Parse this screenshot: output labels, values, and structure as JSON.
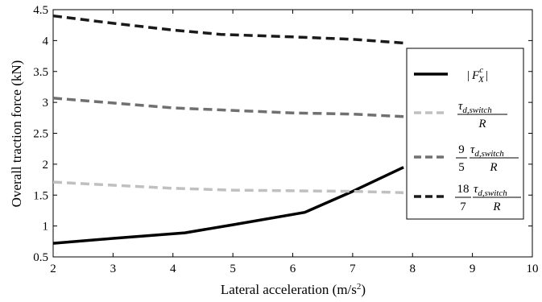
{
  "chart_data": {
    "type": "line",
    "title": "",
    "xlabel": "Lateral acceleration (m/s",
    "xlabel_sup": "2",
    "xlabel_close": ")",
    "ylabel": "Overall traction force (kN)",
    "xlim": [
      2,
      10
    ],
    "ylim": [
      0.5,
      4.5
    ],
    "xticks": [
      2,
      3,
      4,
      5,
      6,
      7,
      8,
      9,
      10
    ],
    "yticks": [
      0.5,
      1,
      1.5,
      2,
      2.5,
      3,
      3.5,
      4,
      4.5
    ],
    "xtick_labels": [
      "2",
      "3",
      "4",
      "5",
      "6",
      "7",
      "8",
      "9",
      "10"
    ],
    "ytick_labels": [
      "0.5",
      "1",
      "1.5",
      "2",
      "2.5",
      "3",
      "3.5",
      "4",
      "4.5"
    ],
    "grid": false,
    "legend_position": "right",
    "series": [
      {
        "legend_key": "fx",
        "color": "#000000",
        "style": "solid",
        "x": [
          2.0,
          3.0,
          4.2,
          5.0,
          6.2,
          7.0,
          7.85
        ],
        "y": [
          0.72,
          0.8,
          0.89,
          1.02,
          1.22,
          1.56,
          1.95
        ]
      },
      {
        "legend_key": "t1",
        "color": "#c0c0c0",
        "style": "dashed",
        "x": [
          2.0,
          3.0,
          4.0,
          5.0,
          6.0,
          7.0,
          7.85
        ],
        "y": [
          1.71,
          1.66,
          1.61,
          1.58,
          1.57,
          1.56,
          1.54
        ]
      },
      {
        "legend_key": "t2",
        "color": "#707070",
        "style": "dashed",
        "x": [
          2.0,
          3.0,
          4.0,
          5.0,
          6.0,
          7.0,
          7.85
        ],
        "y": [
          3.07,
          2.99,
          2.91,
          2.87,
          2.83,
          2.81,
          2.77
        ]
      },
      {
        "legend_key": "t3",
        "color": "#1a1a1a",
        "style": "dashed",
        "x": [
          2.0,
          3.0,
          4.0,
          4.8,
          6.0,
          7.0,
          7.85
        ],
        "y": [
          4.4,
          4.28,
          4.17,
          4.1,
          4.06,
          4.02,
          3.96
        ]
      }
    ],
    "legend": {
      "fx": {
        "bar_left": "|",
        "main": "F",
        "sup": "c",
        "sub": "X",
        "bar_right": "|"
      },
      "t1": {
        "num_main": "τ",
        "num_sub": "d,switch",
        "den": "R"
      },
      "t2": {
        "coef_num": "9",
        "coef_den": "5",
        "num_main": "τ",
        "num_sub": "d,switch",
        "den": "R"
      },
      "t3": {
        "coef_num": "18",
        "coef_den": "7",
        "num_main": "τ",
        "num_sub": "d,switch",
        "den": "R"
      }
    }
  }
}
